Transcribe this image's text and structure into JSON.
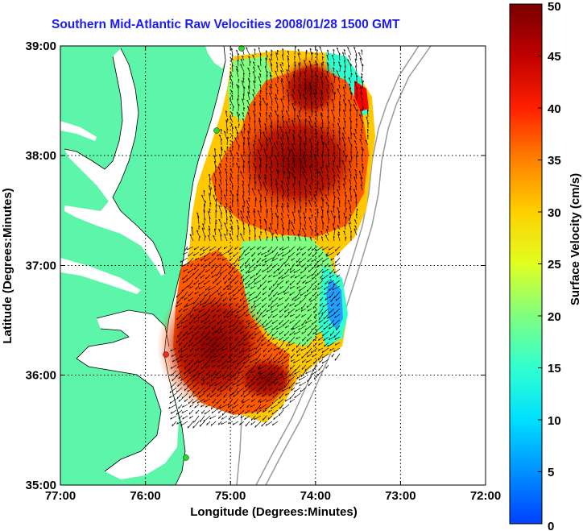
{
  "title": "Southern Mid-Atlantic Raw Velocities 2008/01/28 1500 GMT",
  "xlabel": "Longitude (Degrees:Minutes)",
  "ylabel": "Latitude (Degrees:Minutes)",
  "x_ticks": [
    "77:00",
    "76:00",
    "75:00",
    "74:00",
    "73:00",
    "72:00"
  ],
  "y_ticks": [
    "39:00",
    "38:00",
    "37:00",
    "36:00",
    "35:00"
  ],
  "colorbar": {
    "label": "Surface Velocity (cm/s)",
    "ticks": [
      "0",
      "5",
      "10",
      "15",
      "20",
      "25",
      "30",
      "35",
      "40",
      "45",
      "50"
    ]
  },
  "colors": {
    "land": "#5cf5a9",
    "water": "#ffffff",
    "title": "#1a1aff",
    "station_green": "#22dd22",
    "station_red": "#ff2222"
  }
}
